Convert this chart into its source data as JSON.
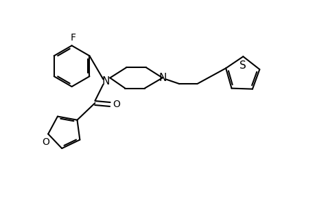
{
  "background_color": "#ffffff",
  "line_color": "#000000",
  "line_width": 1.5,
  "font_size": 10,
  "xlim": [
    0,
    10
  ],
  "ylim": [
    0,
    7.5
  ],
  "figsize": [
    4.6,
    3.0
  ],
  "dpi": 100
}
